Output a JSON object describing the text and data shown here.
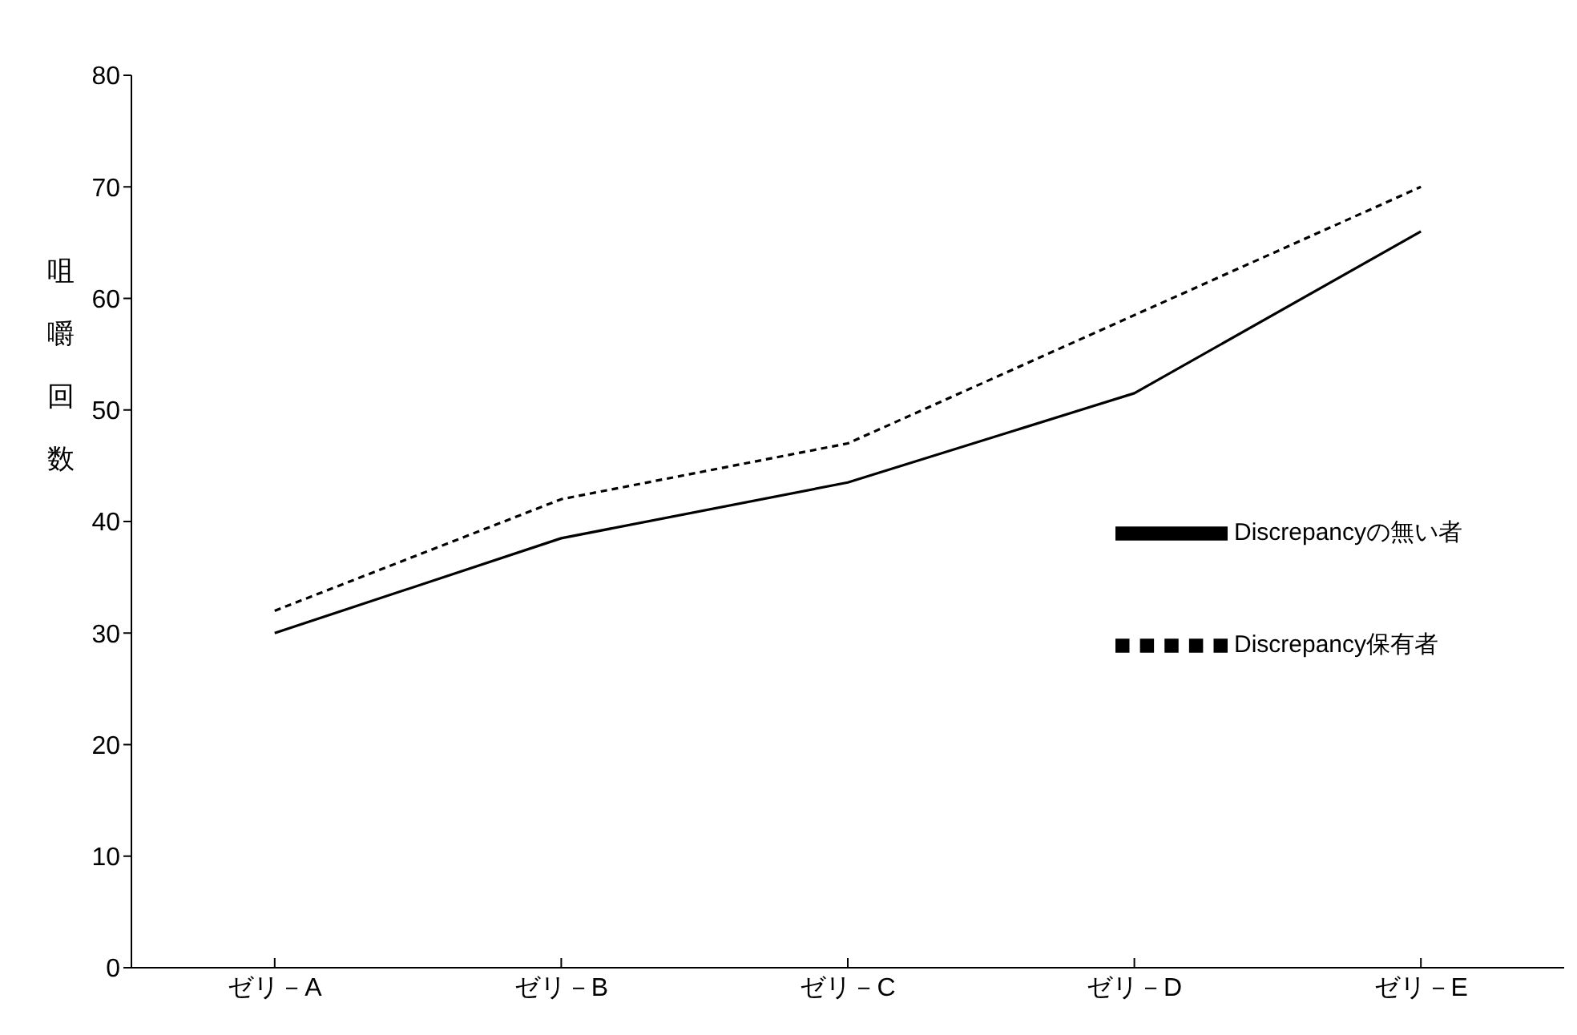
{
  "chart_data": {
    "type": "line",
    "ylabel": "咀嚼回数",
    "categories": [
      "ゼリ－A",
      "ゼリ－B",
      "ゼリ－C",
      "ゼリ－D",
      "ゼリ－E"
    ],
    "series": [
      {
        "name": "Discrepancyの無い者",
        "color": "#000000",
        "line_style": "solid",
        "values": [
          30,
          38.5,
          43.5,
          51.5,
          66
        ]
      },
      {
        "name": "Discrepancy保有者",
        "color": "#000000",
        "line_style": "dashed",
        "values": [
          32,
          42,
          47,
          58.5,
          70
        ]
      }
    ],
    "ylim": [
      0,
      80
    ],
    "yticks": [
      0,
      10,
      20,
      30,
      40,
      50,
      60,
      70,
      80
    ],
    "grid": false,
    "legend": "right",
    "marker": "none"
  }
}
